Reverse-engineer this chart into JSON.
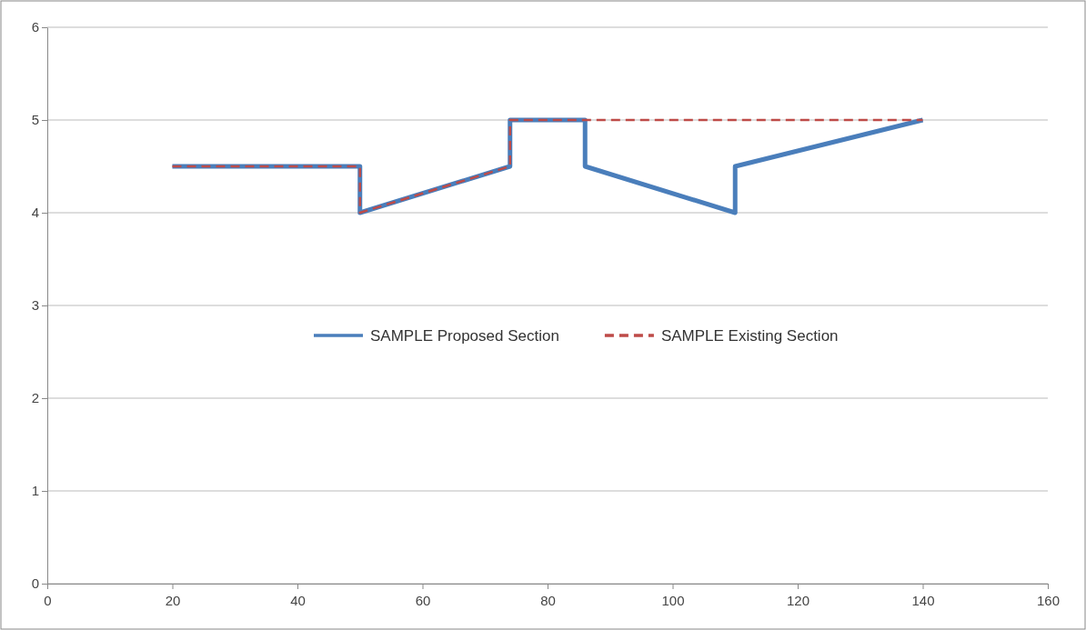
{
  "chart_data": {
    "type": "line",
    "xlim": [
      0,
      160
    ],
    "xticks": [
      0,
      20,
      40,
      60,
      80,
      100,
      120,
      140,
      160
    ],
    "ylim": [
      0,
      6
    ],
    "yticks": [
      0,
      1,
      2,
      3,
      4,
      5,
      6
    ],
    "grid": "y",
    "legend": "center",
    "marker": "none",
    "series": [
      {
        "name": "SAMPLE Proposed Section",
        "color": "#4a7ebb",
        "line_style": "solid",
        "x": [
          20,
          50,
          50,
          74,
          74,
          86,
          86,
          110,
          110,
          140
        ],
        "values": [
          4.5,
          4.5,
          4,
          4.5,
          5,
          5,
          4.5,
          4,
          4.5,
          5
        ]
      },
      {
        "name": "SAMPLE Existing Section",
        "color": "#be4b48",
        "line_style": "dashed",
        "x": [
          20,
          50,
          50,
          74,
          74,
          140
        ],
        "values": [
          4.5,
          4.5,
          4,
          4.5,
          5,
          5
        ]
      }
    ]
  }
}
